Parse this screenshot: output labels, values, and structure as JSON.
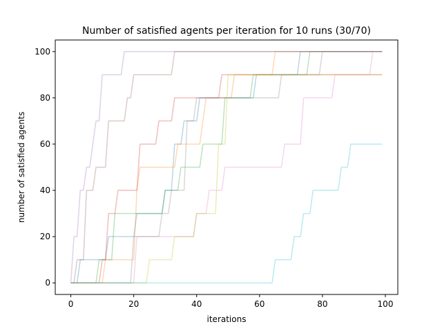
{
  "chart_data": {
    "type": "line",
    "title": "Number of satisfied agents per iteration for 10 runs (30/70)",
    "xlabel": "iterations",
    "ylabel": "number of satisfied agents",
    "xlim": [
      -4.95,
      103.95
    ],
    "ylim": [
      -5,
      105
    ],
    "xticks": [
      0,
      20,
      40,
      60,
      80,
      100
    ],
    "yticks": [
      0,
      20,
      40,
      60,
      80,
      100
    ],
    "grid": false,
    "legend": "none",
    "step": true,
    "series": [
      {
        "color": "#1f77b4",
        "points": [
          [
            0,
            0
          ],
          [
            3,
            10
          ],
          [
            12,
            20
          ],
          [
            21,
            30
          ],
          [
            30,
            40
          ],
          [
            33,
            60
          ],
          [
            36,
            70
          ],
          [
            41,
            80
          ],
          [
            43,
            80
          ],
          [
            59,
            90
          ],
          [
            73,
            100
          ],
          [
            99,
            100
          ]
        ]
      },
      {
        "color": "#ff7f0e",
        "points": [
          [
            0,
            0
          ],
          [
            11,
            10
          ],
          [
            21,
            40
          ],
          [
            22,
            50
          ],
          [
            33,
            50
          ],
          [
            34,
            60
          ],
          [
            42,
            70
          ],
          [
            43,
            80
          ],
          [
            52,
            90
          ],
          [
            65,
            100
          ],
          [
            99,
            100
          ]
        ]
      },
      {
        "color": "#2ca02c",
        "points": [
          [
            0,
            0
          ],
          [
            9,
            10
          ],
          [
            14,
            30
          ],
          [
            30,
            40
          ],
          [
            35,
            50
          ],
          [
            41,
            50
          ],
          [
            42,
            60
          ],
          [
            49,
            80
          ],
          [
            58,
            90
          ],
          [
            76,
            100
          ],
          [
            99,
            100
          ]
        ]
      },
      {
        "color": "#d62728",
        "points": [
          [
            0,
            0
          ],
          [
            10,
            10
          ],
          [
            12,
            30
          ],
          [
            15,
            40
          ],
          [
            22,
            60
          ],
          [
            28,
            70
          ],
          [
            33,
            80
          ],
          [
            48,
            90
          ],
          [
            99,
            90
          ]
        ]
      },
      {
        "color": "#9467bd",
        "points": [
          [
            0,
            0
          ],
          [
            1,
            20
          ],
          [
            3,
            40
          ],
          [
            5,
            50
          ],
          [
            7,
            60
          ],
          [
            8,
            70
          ],
          [
            10,
            90
          ],
          [
            17,
            100
          ],
          [
            99,
            100
          ]
        ]
      },
      {
        "color": "#8c564b",
        "points": [
          [
            0,
            0
          ],
          [
            2,
            10
          ],
          [
            5,
            40
          ],
          [
            8,
            50
          ],
          [
            12,
            70
          ],
          [
            18,
            80
          ],
          [
            20,
            90
          ],
          [
            33,
            100
          ],
          [
            99,
            100
          ]
        ]
      },
      {
        "color": "#e377c2",
        "points": [
          [
            0,
            0
          ],
          [
            21,
            20
          ],
          [
            40,
            30
          ],
          [
            44,
            40
          ],
          [
            49,
            50
          ],
          [
            68,
            60
          ],
          [
            74,
            80
          ],
          [
            84,
            90
          ],
          [
            96,
            100
          ],
          [
            99,
            100
          ]
        ]
      },
      {
        "color": "#7f7f7f",
        "points": [
          [
            0,
            0
          ],
          [
            20,
            20
          ],
          [
            29,
            30
          ],
          [
            32,
            40
          ],
          [
            37,
            70
          ],
          [
            40,
            80
          ],
          [
            67,
            90
          ],
          [
            80,
            100
          ],
          [
            99,
            100
          ]
        ]
      },
      {
        "color": "#bcbd22",
        "points": [
          [
            0,
            0
          ],
          [
            25,
            10
          ],
          [
            33,
            20
          ],
          [
            40,
            30
          ],
          [
            47,
            60
          ],
          [
            50,
            90
          ],
          [
            99,
            90
          ]
        ]
      },
      {
        "color": "#17becf",
        "points": [
          [
            0,
            0
          ],
          [
            65,
            10
          ],
          [
            71,
            20
          ],
          [
            74,
            30
          ],
          [
            77,
            40
          ],
          [
            86,
            50
          ],
          [
            89,
            60
          ],
          [
            99,
            60
          ]
        ]
      }
    ]
  }
}
